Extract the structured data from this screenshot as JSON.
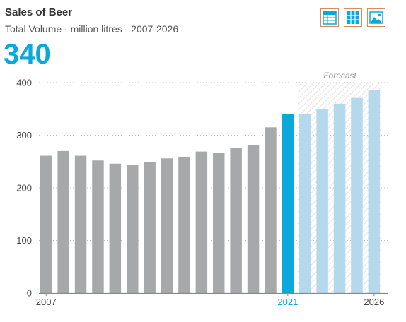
{
  "header": {
    "title": "Sales of Beer",
    "subtitle": "Total Volume - million litres - 2007-2026",
    "highlight_value": "340"
  },
  "view_switch": {
    "buttons": [
      {
        "name": "table-view-button",
        "icon": "table-icon"
      },
      {
        "name": "grid-view-button",
        "icon": "grid-icon"
      },
      {
        "name": "chart-view-button",
        "icon": "image-chart-icon"
      }
    ]
  },
  "colors": {
    "actual": "#a7a8a9",
    "highlight": "#0aa9d9",
    "forecast": "#b4d9ec",
    "axis_tick": "#444444"
  },
  "chart_data": {
    "type": "bar",
    "title": "Sales of Beer",
    "subtitle": "Total Volume - million litres - 2007-2026",
    "xlabel": "",
    "ylabel": "",
    "ylim": [
      0,
      400
    ],
    "y_ticks": [
      0,
      100,
      200,
      300,
      400
    ],
    "x_tick_labels": [
      "2007",
      "2021",
      "2026"
    ],
    "grid": true,
    "forecast_label": "Forecast",
    "forecast_start": "2022",
    "highlight_category": "2021",
    "categories": [
      "2007",
      "2008",
      "2009",
      "2010",
      "2011",
      "2012",
      "2013",
      "2014",
      "2015",
      "2016",
      "2017",
      "2018",
      "2019",
      "2020",
      "2021",
      "2022",
      "2023",
      "2024",
      "2025",
      "2026"
    ],
    "values": [
      261,
      270,
      261,
      252,
      246,
      244,
      249,
      256,
      258,
      269,
      266,
      276,
      281,
      315,
      340,
      341,
      349,
      360,
      371,
      386
    ]
  }
}
